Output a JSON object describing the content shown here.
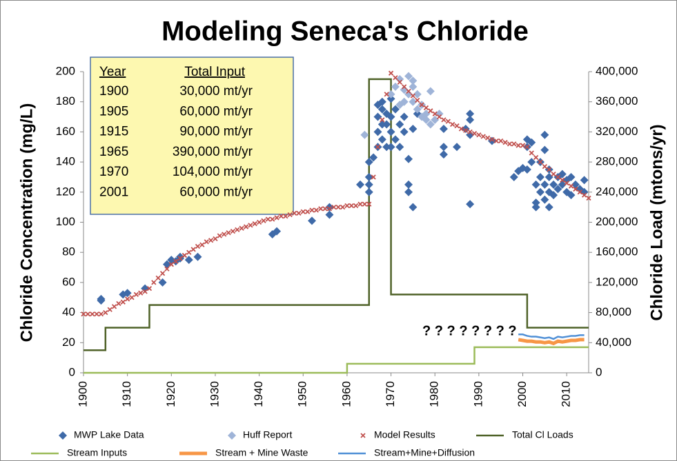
{
  "chart_data": {
    "type": "combo",
    "title": "Modeling Seneca's Chloride",
    "y_label": "Chloride Concentration (mg/L)",
    "y2_label": "Chloride Load (mtons/yr)",
    "xlim": [
      1900,
      2015
    ],
    "xticks": [
      1900,
      1910,
      1920,
      1930,
      1940,
      1950,
      1960,
      1970,
      1980,
      1990,
      2000,
      2010
    ],
    "ylim": [
      0,
      200
    ],
    "yticks": [
      0,
      20,
      40,
      60,
      80,
      100,
      120,
      140,
      160,
      180,
      200
    ],
    "y2lim": [
      0,
      400000
    ],
    "y2ticks": [
      0,
      {
        "value": 40000,
        "label": "40,000"
      },
      {
        "value": 80000,
        "label": "80,000"
      },
      {
        "value": 120000,
        "label": "120,000"
      },
      {
        "value": 160000,
        "label": "160,000"
      },
      {
        "value": 200000,
        "label": "200,000"
      },
      {
        "value": 240000,
        "label": "240,000"
      },
      {
        "value": 280000,
        "label": "280,000"
      },
      {
        "value": 320000,
        "label": "320,000"
      },
      {
        "value": 360000,
        "label": "360,000"
      },
      {
        "value": 400000,
        "label": "400,000"
      }
    ],
    "legend": "bottom",
    "annotation": "? ? ? ? ? ? ? ?",
    "annotation_color": "#f5b800",
    "annotation_table": {
      "header": [
        "Year",
        "Total Input"
      ],
      "rows": [
        [
          "1900",
          "30,000 mt/yr"
        ],
        [
          "1905",
          "60,000 mt/yr"
        ],
        [
          "1915",
          "90,000 mt/yr"
        ],
        [
          "1965",
          "390,000 mt/yr"
        ],
        [
          "1970",
          "104,000 mt/yr"
        ],
        [
          "2001",
          "60,000 mt/yr"
        ]
      ]
    },
    "series": [
      {
        "name": "MWP Lake Data",
        "type": "scatter",
        "marker": "diamond",
        "color": "#3f6aa8",
        "x": [
          1904,
          1904,
          1909,
          1910,
          1914,
          1918,
          1919,
          1920,
          1921,
          1922,
          1922,
          1924,
          1926,
          1943,
          1944,
          1952,
          1956,
          1956,
          1963,
          1965,
          1965,
          1965,
          1965,
          1966,
          1967,
          1967,
          1967,
          1967,
          1968,
          1968,
          1968,
          1968,
          1969,
          1969,
          1969,
          1970,
          1970,
          1970,
          1970,
          1971,
          1971,
          1972,
          1972,
          1973,
          1973,
          1974,
          1974,
          1974,
          1975,
          1975,
          1976,
          1982,
          1982,
          1982,
          1985,
          1987,
          1988,
          1988,
          1988,
          1988,
          1993,
          1998,
          1999,
          2000,
          2001,
          2001,
          2001,
          2002,
          2002,
          2003,
          2003,
          2003,
          2004,
          2004,
          2004,
          2005,
          2005,
          2005,
          2005,
          2006,
          2006,
          2006,
          2006,
          2007,
          2007,
          2008,
          2008,
          2009,
          2009,
          2010,
          2010,
          2011,
          2011,
          2012,
          2013,
          2014,
          2014
        ],
        "values": [
          48,
          49,
          52,
          53,
          56,
          60,
          72,
          75,
          74,
          77,
          76,
          75,
          77,
          92,
          94,
          101,
          105,
          110,
          125,
          120,
          125,
          130,
          140,
          143,
          150,
          160,
          170,
          178,
          155,
          165,
          175,
          180,
          150,
          165,
          172,
          150,
          160,
          170,
          182,
          155,
          175,
          165,
          150,
          170,
          160,
          142,
          125,
          120,
          110,
          162,
          172,
          162,
          145,
          150,
          150,
          162,
          168,
          172,
          158,
          112,
          154,
          130,
          134,
          136,
          155,
          150,
          135,
          153,
          140,
          125,
          113,
          110,
          140,
          120,
          130,
          158,
          148,
          125,
          115,
          110,
          120,
          130,
          135,
          125,
          118,
          130,
          122,
          132,
          125,
          120,
          128,
          118,
          130,
          125,
          122,
          128,
          120
        ]
      },
      {
        "name": "Huff Report",
        "type": "scatter",
        "marker": "diamond",
        "color": "#9fb4d8",
        "x": [
          1964,
          1970,
          1971,
          1972,
          1973,
          1973,
          1974,
          1974,
          1975,
          1975,
          1976,
          1976,
          1977,
          1977,
          1978,
          1978,
          1979,
          1979,
          1980,
          1981,
          1975,
          1972
        ],
        "values": [
          158,
          185,
          190,
          195,
          188,
          180,
          197,
          185,
          190,
          180,
          175,
          185,
          170,
          178,
          172,
          168,
          165,
          187,
          168,
          172,
          194,
          178
        ]
      },
      {
        "name": "Model Results",
        "type": "scatter",
        "marker": "x",
        "color": "#c0504d",
        "x": [
          1900,
          1901,
          1902,
          1903,
          1904,
          1905,
          1906,
          1907,
          1908,
          1909,
          1910,
          1911,
          1912,
          1913,
          1914,
          1915,
          1916,
          1917,
          1918,
          1919,
          1920,
          1921,
          1922,
          1923,
          1924,
          1925,
          1926,
          1927,
          1928,
          1929,
          1930,
          1931,
          1932,
          1933,
          1934,
          1935,
          1936,
          1937,
          1938,
          1939,
          1940,
          1941,
          1942,
          1943,
          1944,
          1945,
          1946,
          1947,
          1948,
          1949,
          1950,
          1951,
          1952,
          1953,
          1954,
          1955,
          1956,
          1957,
          1958,
          1959,
          1960,
          1961,
          1962,
          1963,
          1964,
          1965,
          1966,
          1967,
          1968,
          1969,
          1970,
          1971,
          1972,
          1973,
          1974,
          1975,
          1976,
          1977,
          1978,
          1979,
          1980,
          1981,
          1982,
          1983,
          1984,
          1985,
          1986,
          1987,
          1988,
          1989,
          1990,
          1991,
          1992,
          1993,
          1994,
          1995,
          1996,
          1997,
          1998,
          1999,
          2000,
          2001,
          2002,
          2003,
          2004,
          2005,
          2006,
          2007,
          2008,
          2009,
          2010,
          2011,
          2012,
          2013,
          2014,
          2015
        ],
        "values": [
          39,
          39,
          39,
          39,
          39,
          40,
          42,
          44,
          46,
          47,
          49,
          50,
          52,
          53,
          54,
          56,
          60,
          63,
          66,
          69,
          72,
          74,
          76,
          78,
          80,
          82,
          84,
          85,
          87,
          88,
          89,
          91,
          92,
          93,
          94,
          95,
          96,
          97,
          98,
          99,
          100,
          101,
          102,
          102,
          103,
          104,
          104,
          105,
          106,
          106,
          107,
          107,
          108,
          108,
          109,
          109,
          109,
          110,
          110,
          110,
          111,
          111,
          111,
          112,
          112,
          112,
          130,
          150,
          168,
          185,
          199,
          196,
          193,
          190,
          187,
          184,
          181,
          178,
          176,
          174,
          172,
          170,
          168,
          167,
          165,
          164,
          162,
          161,
          160,
          159,
          158,
          157,
          156,
          155,
          154,
          154,
          153,
          152,
          152,
          151,
          151,
          150,
          146,
          143,
          140,
          137,
          135,
          132,
          130,
          128,
          126,
          124,
          122,
          120,
          118,
          116
        ]
      },
      {
        "name": "Total Cl Loads",
        "type": "line",
        "axis": "y2",
        "color": "#4f6228",
        "x": [
          1900,
          1905,
          1905,
          1915,
          1915,
          1965,
          1965,
          1970,
          1970,
          2001,
          2001,
          2015
        ],
        "values": [
          30000,
          30000,
          60000,
          60000,
          90000,
          90000,
          390000,
          390000,
          104000,
          104000,
          60000,
          60000
        ]
      },
      {
        "name": "Stream Inputs",
        "type": "line",
        "axis": "y2",
        "color": "#9bbb59",
        "x": [
          1900,
          1960,
          1960,
          1989,
          1989,
          2015
        ],
        "values": [
          0,
          0,
          12000,
          12000,
          34000,
          34000
        ]
      },
      {
        "name": "Stream + Mine Waste",
        "type": "line",
        "axis": "y2",
        "color": "#f79646",
        "width": 5,
        "x": [
          1999,
          2000,
          2001,
          2002,
          2003,
          2004,
          2005,
          2006,
          2007,
          2008,
          2009,
          2010,
          2011,
          2012,
          2013,
          2014
        ],
        "values": [
          44000,
          43000,
          42000,
          42000,
          41000,
          41000,
          40000,
          41000,
          39000,
          42000,
          41000,
          42000,
          43000,
          43000,
          44000,
          44000
        ]
      },
      {
        "name": "Stream+Mine+Diffusion",
        "type": "line",
        "axis": "y2",
        "color": "#4f8fd6",
        "x": [
          1999,
          2000,
          2001,
          2002,
          2003,
          2004,
          2005,
          2006,
          2007,
          2008,
          2009,
          2010,
          2011,
          2012,
          2013,
          2014
        ],
        "values": [
          51000,
          51000,
          49000,
          48000,
          48000,
          47000,
          46000,
          47000,
          45000,
          48000,
          47000,
          48000,
          49000,
          49000,
          50000,
          50000
        ]
      }
    ]
  }
}
